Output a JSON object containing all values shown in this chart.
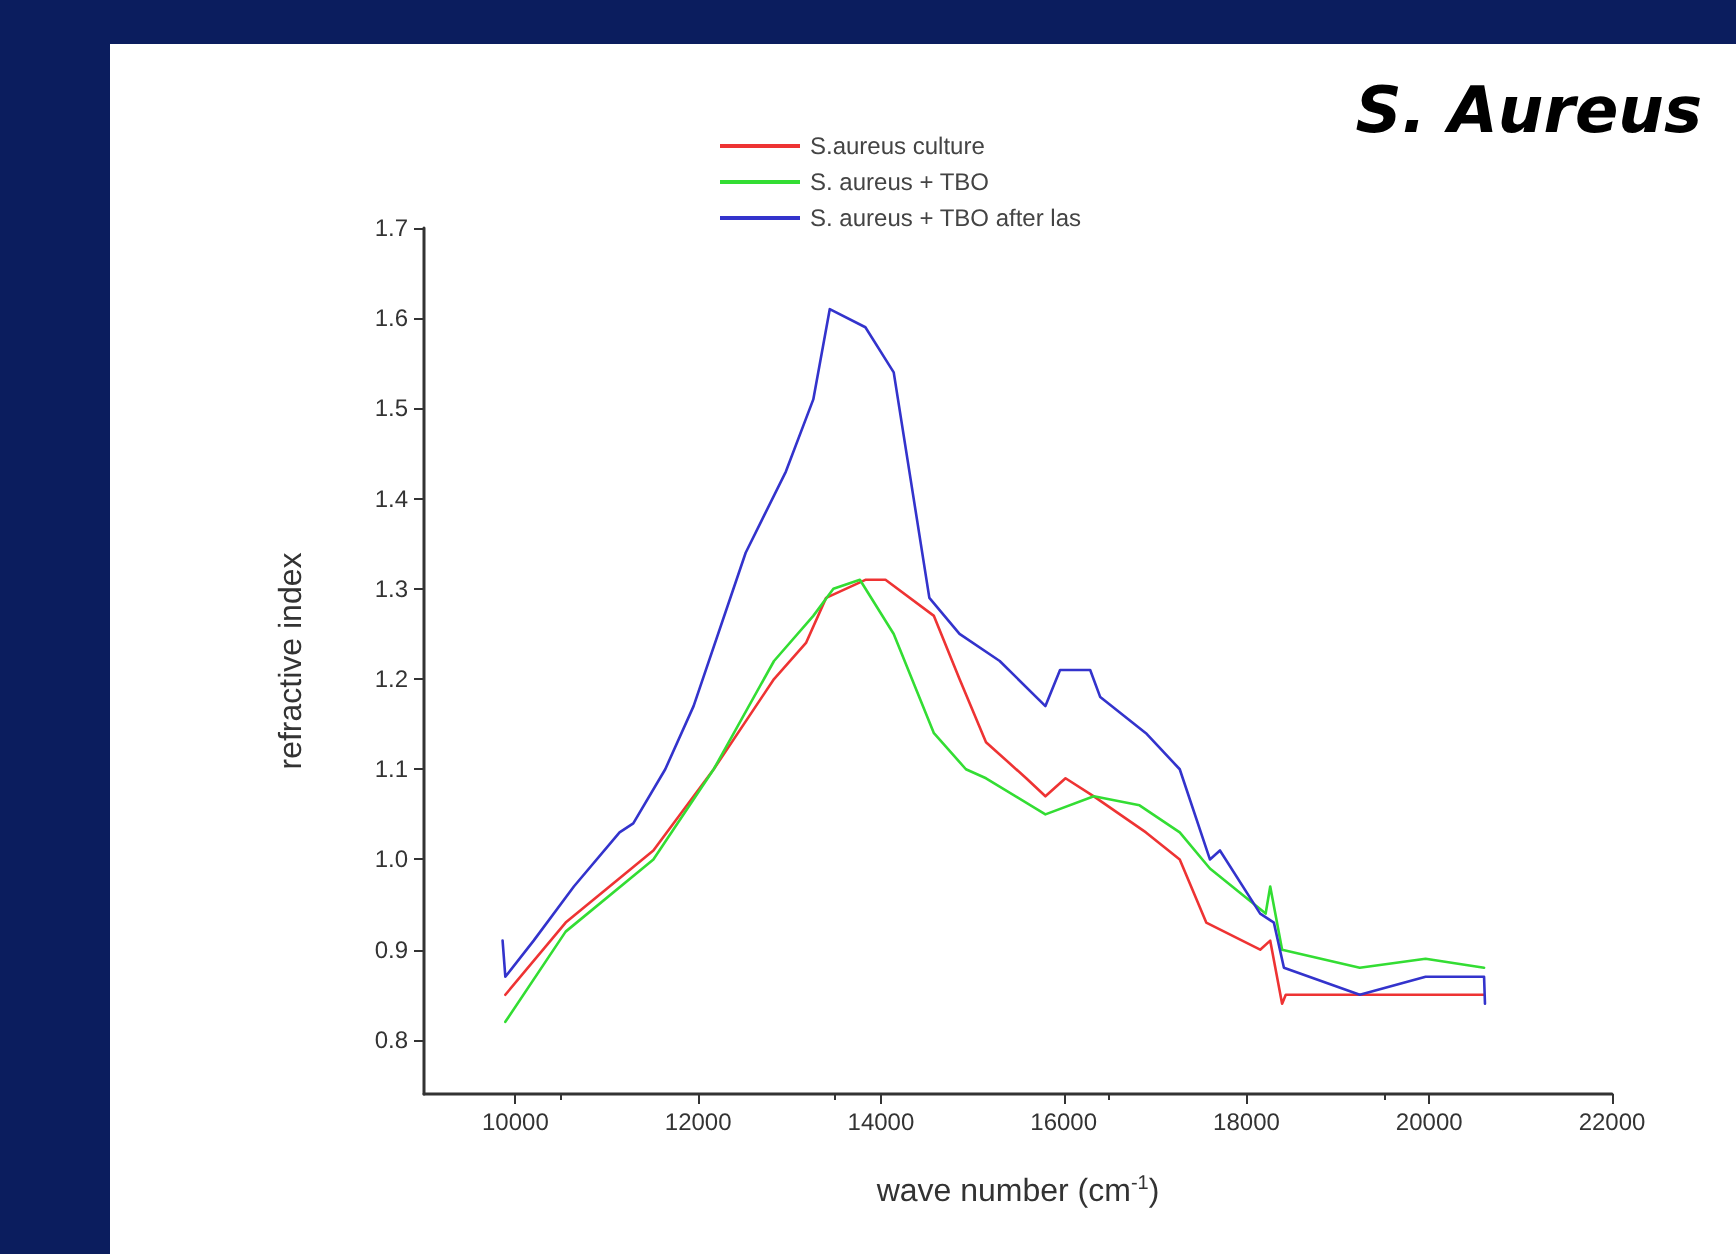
{
  "chart_data": {
    "type": "line",
    "title": "S. Aureus",
    "xlabel": "wave number (cm$^{-1}$)",
    "ylabel": "refractive index",
    "xlim": [
      9000,
      22000
    ],
    "xticks": [
      10000,
      12000,
      14000,
      16000,
      18000,
      20000,
      22000
    ],
    "ylim": [
      0.74,
      1.7
    ],
    "yticks": [
      {
        "value": 0.8,
        "label": "0.8"
      },
      {
        "value": 0.9,
        "label": "0.9"
      },
      {
        "value": 1,
        "label": "1.0"
      },
      {
        "value": 1.1,
        "label": "1.1"
      },
      {
        "value": 1.2,
        "label": "1.2"
      },
      {
        "value": 1.3,
        "label": "1.3"
      },
      {
        "value": 1.4,
        "label": "1.4"
      },
      {
        "value": 1.5,
        "label": "1.5"
      },
      {
        "value": 1.6,
        "label": "1.6"
      },
      {
        "value": 1.7,
        "label": "1.7"
      }
    ],
    "grid": false,
    "legend": "top",
    "marker": "none",
    "line_style": "solid",
    "series": [
      {
        "name": "S.aureus culture",
        "color": "#ee3333",
        "x": [
          9890,
          10550,
          11510,
          12170,
          12830,
          13180,
          13400,
          13830,
          14050,
          14580,
          14860,
          15150,
          15590,
          15800,
          16020,
          16330,
          16900,
          17270,
          17560,
          18150,
          18260,
          18390,
          18430,
          19240,
          20600
        ],
        "values": [
          0.85,
          0.93,
          1.01,
          1.1,
          1.2,
          1.24,
          1.29,
          1.31,
          1.31,
          1.27,
          1.2,
          1.13,
          1.09,
          1.07,
          1.09,
          1.07,
          1.03,
          1.0,
          0.93,
          0.9,
          0.91,
          0.84,
          0.85,
          0.85,
          0.85
        ]
      },
      {
        "name": "S. aureus + TBO",
        "color": "#33dd33",
        "x": [
          9890,
          10550,
          11510,
          12170,
          12830,
          13260,
          13480,
          13770,
          14140,
          14580,
          14930,
          15150,
          15800,
          16330,
          16830,
          17270,
          17600,
          18210,
          18260,
          18390,
          19240,
          19960,
          20600
        ],
        "values": [
          0.82,
          0.92,
          1.0,
          1.1,
          1.22,
          1.27,
          1.3,
          1.31,
          1.25,
          1.14,
          1.1,
          1.09,
          1.05,
          1.07,
          1.06,
          1.03,
          0.99,
          0.94,
          0.97,
          0.9,
          0.88,
          0.89,
          0.88
        ]
      },
      {
        "name": "S. aureus + TBO after las",
        "color": "#3333cc",
        "x": [
          9860,
          9890,
          10200,
          10640,
          11140,
          11290,
          11640,
          11950,
          12520,
          12960,
          13260,
          13440,
          13830,
          14140,
          14530,
          14860,
          15300,
          15800,
          15960,
          16290,
          16400,
          16900,
          17270,
          17600,
          17710,
          18150,
          18300,
          18410,
          19240,
          19960,
          20600,
          20610
        ],
        "values": [
          0.91,
          0.87,
          0.91,
          0.97,
          1.03,
          1.04,
          1.1,
          1.17,
          1.34,
          1.43,
          1.51,
          1.61,
          1.59,
          1.54,
          1.29,
          1.25,
          1.22,
          1.17,
          1.21,
          1.21,
          1.18,
          1.14,
          1.1,
          1.0,
          1.01,
          0.94,
          0.93,
          0.88,
          0.85,
          0.87,
          0.87,
          0.84
        ]
      }
    ]
  }
}
